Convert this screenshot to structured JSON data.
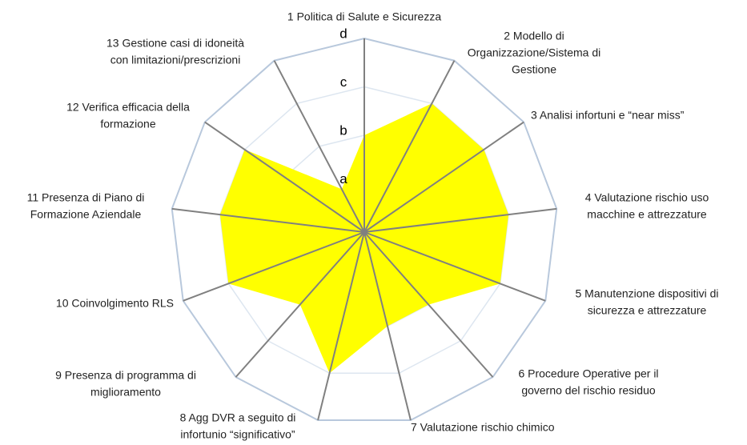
{
  "chart_data": {
    "type": "radar",
    "categories": [
      [
        "1 Politica di Salute e Sicurezza"
      ],
      [
        "2 Modello di",
        "Organizzazione/Sistema di",
        "Gestione"
      ],
      [
        "3 Analisi infortuni e “near miss”"
      ],
      [
        "4 Valutazione  rischio uso",
        "macchine e attrezzature"
      ],
      [
        "5 Manutenzione  dispositivi di",
        "sicurezza e attrezzature"
      ],
      [
        "6 Procedure Operative  per il",
        "governo del rischio residuo"
      ],
      [
        "7 Valutazione  rischio chimico"
      ],
      [
        "8 Agg DVR a seguito di",
        "infortunio “significativo”"
      ],
      [
        "9 Presenza di programma di",
        "miglioramento"
      ],
      [
        "10 Coinvolgimento RLS"
      ],
      [
        "11 Presenza di Piano di",
        "Formazione Aziendale"
      ],
      [
        "12 Verifica efficacia della",
        "formazione"
      ],
      [
        "13 Gestione casi di idoneità",
        "con limitazioni/prescrizioni"
      ]
    ],
    "values": [
      2,
      3,
      3,
      3,
      3,
      2,
      2,
      3,
      2,
      3,
      3,
      3,
      1
    ],
    "color": "#ffff00",
    "rlim": [
      0,
      4
    ],
    "rticks": [
      {
        "value": 1,
        "label": "a"
      },
      {
        "value": 2,
        "label": "b"
      },
      {
        "value": 3,
        "label": "c"
      },
      {
        "value": 4,
        "label": "d"
      }
    ]
  }
}
